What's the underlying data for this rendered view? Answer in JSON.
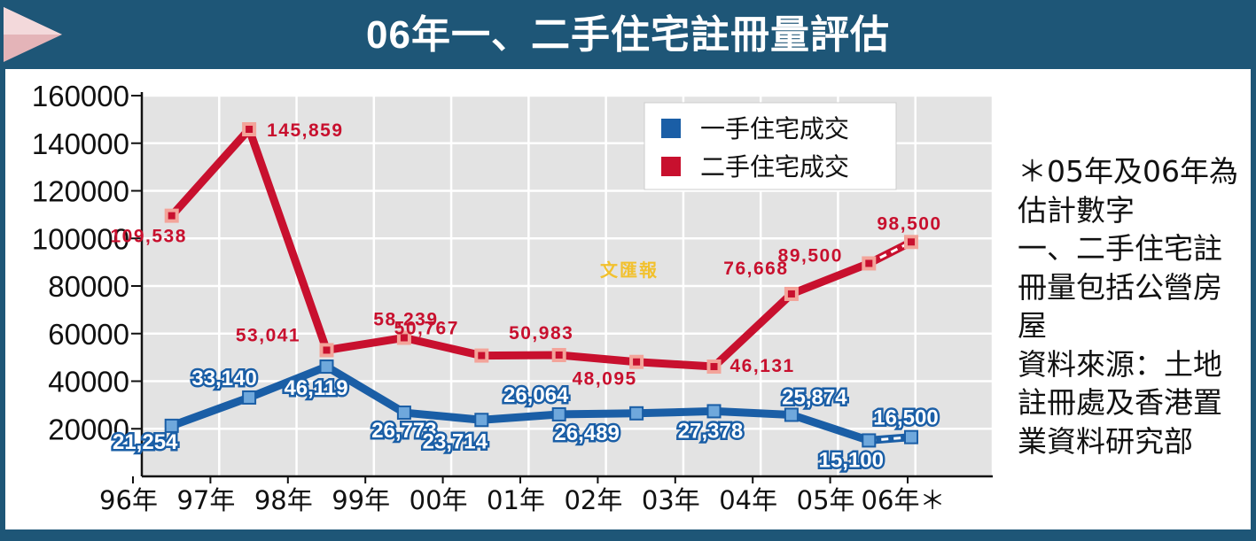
{
  "title": "06年一、二手住宅註冊量評估",
  "watermark": "文匯報",
  "notes": [
    "＊05年及06年為估計數字",
    "一、二手住宅註冊量包括公營房屋",
    "資料來源：土地註冊處及香港置業資料研究部"
  ],
  "colors": {
    "primary_series": "#1a5ea6",
    "secondary_series": "#c8102e",
    "frame": "#1e5677",
    "plot_background": "#e3e3e3"
  },
  "chart_data": {
    "type": "line",
    "categories": [
      "96年",
      "97年",
      "98年",
      "99年",
      "00年",
      "01年",
      "02年",
      "03年",
      "04年",
      "05年",
      "06年＊"
    ],
    "x_positions": [
      "96年-97年",
      "97年-98年",
      "98年-99年",
      "99年-00年",
      "00年-01年",
      "01年-02年",
      "02年-03年",
      "03年-04年",
      "04年-05年",
      "05年-06年",
      "06年＊"
    ],
    "ylim": [
      0,
      160000
    ],
    "yticks": [
      "20000",
      "40000",
      "60000",
      "80000",
      "100000",
      "120000",
      "140000",
      "160000"
    ],
    "grid": true,
    "legend_position": "top-right",
    "estimated_from_index": 9,
    "series": [
      {
        "name": "一手住宅成交",
        "color": "#1a5ea6",
        "values": [
          21254,
          33140,
          46119,
          26773,
          23714,
          26064,
          26489,
          27378,
          25874,
          15100,
          16500
        ],
        "labels": [
          "21,254",
          "33,140",
          "46,119",
          "26,773",
          "23,714",
          "26,064",
          "26,489",
          "27,378",
          "25,874",
          "15,100",
          "16,500"
        ]
      },
      {
        "name": "二手住宅成交",
        "color": "#c8102e",
        "values": [
          109538,
          145859,
          53041,
          58239,
          50767,
          50983,
          48095,
          46131,
          76668,
          89500,
          98500
        ],
        "labels": [
          "109,538",
          "145,859",
          "53,041",
          "58,239",
          "50,767",
          "50,983",
          "48,095",
          "46,131",
          "76,668",
          "89,500",
          "98,500"
        ]
      }
    ]
  }
}
